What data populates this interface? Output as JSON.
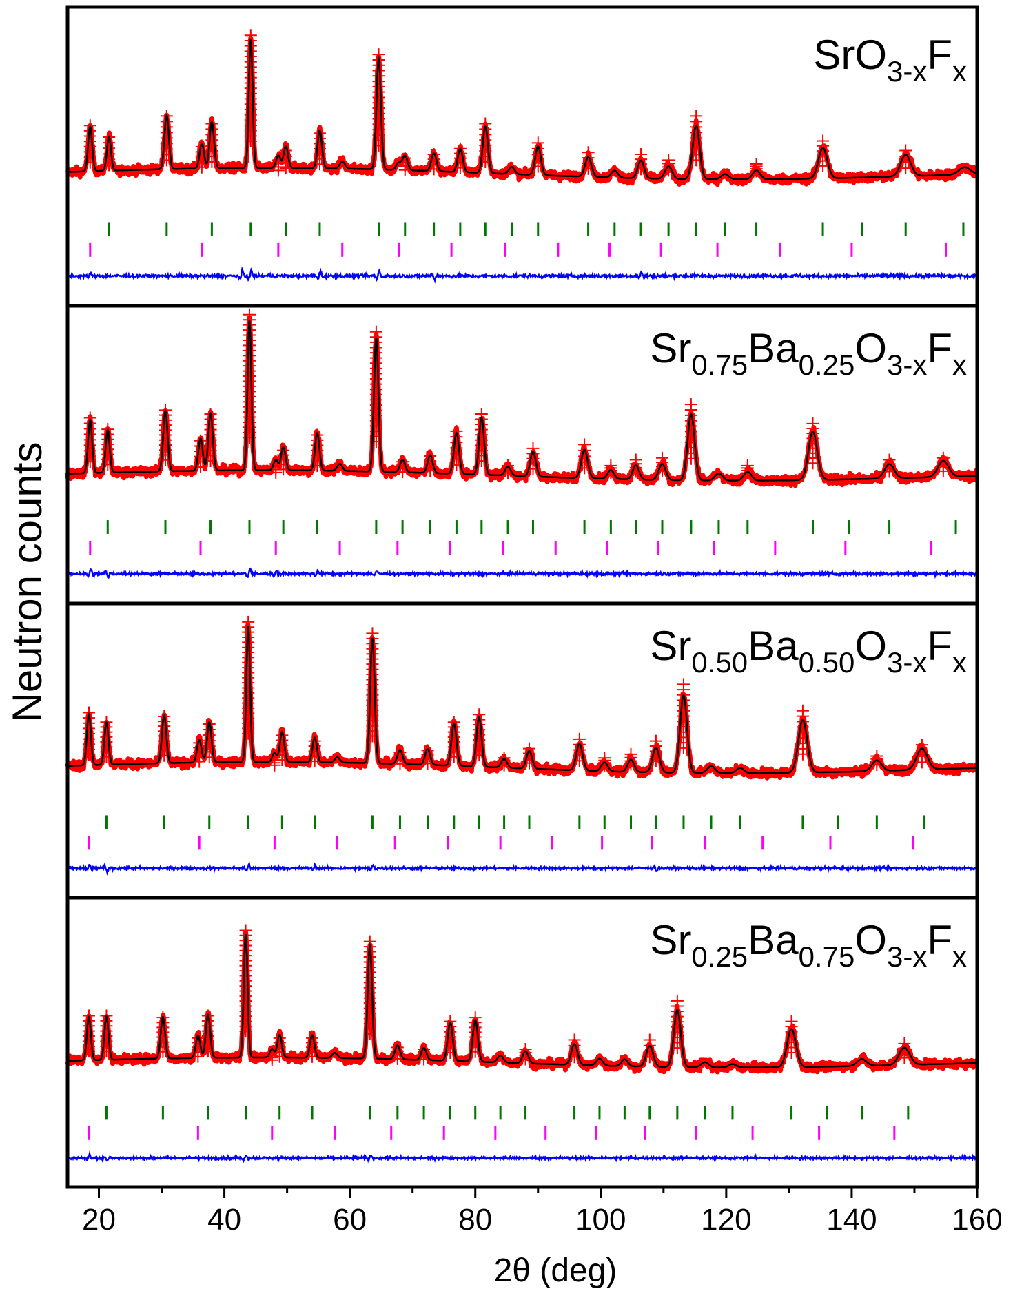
{
  "chart_data": {
    "type": "line",
    "title": "",
    "xlabel": "2θ (deg)",
    "ylabel": "Neutron counts",
    "xlim": [
      15,
      160
    ],
    "xticks": [
      20,
      40,
      60,
      80,
      100,
      120,
      140,
      160
    ],
    "ylim": [
      0,
      1
    ],
    "yticks_shown": false,
    "legend": "none",
    "series_styles": {
      "observed": {
        "color": "#ff0000",
        "marker": "cross"
      },
      "calculated": {
        "color": "#000000"
      },
      "difference": {
        "color": "#0000ff"
      },
      "reflections_phase_1": {
        "color": "#007700"
      },
      "reflections_phase_2": {
        "color": "#ff00ff"
      }
    },
    "panels": [
      {
        "label": {
          "prefix": "SrO",
          "parts": [
            {
              "text": "SrO",
              "sub": false
            },
            {
              "text": "3-x",
              "sub": true
            },
            {
              "text": "F",
              "sub": false
            },
            {
              "text": "x",
              "sub": true
            }
          ]
        },
        "background": 0.18,
        "peaks": [
          [
            18.6,
            0.25,
            0.32
          ],
          [
            21.6,
            0.19,
            0.32
          ],
          [
            30.8,
            0.3,
            0.35
          ],
          [
            36.4,
            0.14,
            0.35
          ],
          [
            38.0,
            0.26,
            0.35
          ],
          [
            44.2,
            0.72,
            0.3
          ],
          [
            48.6,
            0.07,
            0.35
          ],
          [
            49.8,
            0.12,
            0.35
          ],
          [
            55.2,
            0.21,
            0.35
          ],
          [
            58.8,
            0.04,
            0.4
          ],
          [
            64.6,
            0.62,
            0.35
          ],
          [
            67.8,
            0.04,
            0.4
          ],
          [
            68.8,
            0.08,
            0.4
          ],
          [
            73.4,
            0.1,
            0.4
          ],
          [
            77.6,
            0.13,
            0.4
          ],
          [
            81.6,
            0.26,
            0.4
          ],
          [
            85.8,
            0.04,
            0.45
          ],
          [
            90.0,
            0.16,
            0.45
          ],
          [
            98.0,
            0.11,
            0.5
          ],
          [
            102.2,
            0.04,
            0.5
          ],
          [
            106.4,
            0.1,
            0.5
          ],
          [
            110.8,
            0.07,
            0.55
          ],
          [
            115.2,
            0.3,
            0.55
          ],
          [
            119.8,
            0.03,
            0.6
          ],
          [
            124.8,
            0.05,
            0.6
          ],
          [
            135.4,
            0.17,
            0.7
          ],
          [
            148.6,
            0.12,
            0.8
          ],
          [
            158.0,
            0.04,
            0.9
          ]
        ],
        "ticks_phase_1": [
          21.6,
          30.8,
          38.0,
          44.2,
          49.8,
          55.2,
          64.6,
          68.8,
          73.4,
          77.6,
          81.6,
          85.8,
          90.0,
          98.0,
          102.2,
          106.4,
          110.8,
          115.2,
          119.8,
          124.8,
          135.4,
          141.6,
          148.6,
          157.8
        ],
        "ticks_phase_2": [
          18.6,
          36.4,
          48.6,
          58.8,
          67.8,
          76.2,
          84.8,
          93.2,
          101.4,
          109.6,
          118.6,
          128.6,
          140.0,
          155.0
        ],
        "difference_spikes": [
          [
            18.6,
            0.02
          ],
          [
            42.8,
            0.03
          ],
          [
            44.2,
            0.03
          ],
          [
            55.2,
            0.025
          ],
          [
            64.6,
            0.03
          ],
          [
            73.4,
            -0.02
          ],
          [
            106.4,
            0.02
          ]
        ]
      },
      {
        "label": {
          "prefix": "Sr0.75",
          "parts": [
            {
              "text": "Sr",
              "sub": false
            },
            {
              "text": "0.75",
              "sub": true
            },
            {
              "text": "Ba",
              "sub": false
            },
            {
              "text": "0.25",
              "sub": true
            },
            {
              "text": "O",
              "sub": false
            },
            {
              "text": "3-x",
              "sub": true
            },
            {
              "text": "F",
              "sub": false
            },
            {
              "text": "x",
              "sub": true
            }
          ]
        },
        "background": 0.16,
        "peaks": [
          [
            18.6,
            0.3,
            0.32
          ],
          [
            21.4,
            0.24,
            0.32
          ],
          [
            30.6,
            0.34,
            0.35
          ],
          [
            36.2,
            0.18,
            0.35
          ],
          [
            37.8,
            0.32,
            0.35
          ],
          [
            44.0,
            0.84,
            0.3
          ],
          [
            48.2,
            0.06,
            0.35
          ],
          [
            49.4,
            0.13,
            0.35
          ],
          [
            54.8,
            0.21,
            0.35
          ],
          [
            58.4,
            0.04,
            0.4
          ],
          [
            64.2,
            0.75,
            0.35
          ],
          [
            68.4,
            0.07,
            0.4
          ],
          [
            72.8,
            0.1,
            0.4
          ],
          [
            77.0,
            0.23,
            0.4
          ],
          [
            81.0,
            0.32,
            0.4
          ],
          [
            85.2,
            0.05,
            0.45
          ],
          [
            89.2,
            0.14,
            0.45
          ],
          [
            97.4,
            0.16,
            0.5
          ],
          [
            101.6,
            0.05,
            0.5
          ],
          [
            105.6,
            0.08,
            0.5
          ],
          [
            109.8,
            0.09,
            0.55
          ],
          [
            114.4,
            0.37,
            0.55
          ],
          [
            118.8,
            0.04,
            0.6
          ],
          [
            123.4,
            0.05,
            0.6
          ],
          [
            133.8,
            0.27,
            0.7
          ],
          [
            146.0,
            0.08,
            0.75
          ],
          [
            154.6,
            0.09,
            0.85
          ]
        ],
        "ticks_phase_1": [
          21.4,
          30.6,
          37.8,
          44.0,
          49.4,
          54.8,
          64.2,
          68.4,
          72.8,
          77.0,
          81.0,
          85.2,
          89.2,
          97.4,
          101.6,
          105.6,
          109.8,
          114.4,
          118.8,
          123.4,
          133.8,
          139.6,
          146.0,
          156.6
        ],
        "ticks_phase_2": [
          18.6,
          36.2,
          48.2,
          58.4,
          67.6,
          76.0,
          84.4,
          92.8,
          101.0,
          109.2,
          118.0,
          127.8,
          139.0,
          152.6
        ],
        "difference_spikes": [
          [
            18.6,
            0.025
          ],
          [
            21.4,
            -0.02
          ],
          [
            44.0,
            0.03
          ],
          [
            48.2,
            0.02
          ],
          [
            54.8,
            0.02
          ],
          [
            64.2,
            0.015
          ]
        ]
      },
      {
        "label": {
          "prefix": "Sr0.50",
          "parts": [
            {
              "text": "Sr",
              "sub": false
            },
            {
              "text": "0.50",
              "sub": true
            },
            {
              "text": "Ba",
              "sub": false
            },
            {
              "text": "0.50",
              "sub": true
            },
            {
              "text": "O",
              "sub": false
            },
            {
              "text": "3-x",
              "sub": true
            },
            {
              "text": "F",
              "sub": false
            },
            {
              "text": "x",
              "sub": true
            }
          ]
        },
        "background": 0.18,
        "peaks": [
          [
            18.4,
            0.29,
            0.32
          ],
          [
            21.2,
            0.24,
            0.32
          ],
          [
            30.4,
            0.27,
            0.35
          ],
          [
            36.0,
            0.13,
            0.35
          ],
          [
            37.6,
            0.23,
            0.35
          ],
          [
            43.8,
            0.77,
            0.3
          ],
          [
            48.0,
            0.05,
            0.35
          ],
          [
            49.2,
            0.17,
            0.35
          ],
          [
            54.4,
            0.14,
            0.35
          ],
          [
            58.0,
            0.03,
            0.4
          ],
          [
            63.6,
            0.71,
            0.35
          ],
          [
            68.0,
            0.08,
            0.4
          ],
          [
            72.4,
            0.09,
            0.4
          ],
          [
            76.6,
            0.24,
            0.4
          ],
          [
            80.6,
            0.28,
            0.4
          ],
          [
            84.6,
            0.05,
            0.45
          ],
          [
            88.6,
            0.1,
            0.45
          ],
          [
            96.6,
            0.15,
            0.5
          ],
          [
            100.6,
            0.05,
            0.5
          ],
          [
            104.8,
            0.07,
            0.5
          ],
          [
            108.8,
            0.14,
            0.55
          ],
          [
            113.2,
            0.44,
            0.55
          ],
          [
            117.6,
            0.04,
            0.6
          ],
          [
            122.2,
            0.03,
            0.6
          ],
          [
            132.2,
            0.3,
            0.7
          ],
          [
            144.0,
            0.06,
            0.75
          ],
          [
            151.2,
            0.12,
            0.85
          ]
        ],
        "ticks_phase_1": [
          21.2,
          30.4,
          37.6,
          43.8,
          49.2,
          54.4,
          63.6,
          68.0,
          72.4,
          76.6,
          80.6,
          84.6,
          88.6,
          96.6,
          100.6,
          104.8,
          108.8,
          113.2,
          117.6,
          122.2,
          132.2,
          137.8,
          144.0,
          151.6
        ],
        "ticks_phase_2": [
          18.4,
          36.0,
          48.0,
          58.0,
          67.2,
          75.6,
          84.0,
          92.2,
          100.2,
          108.2,
          116.6,
          125.8,
          136.6,
          149.8
        ],
        "difference_spikes": [
          [
            18.4,
            0.02
          ],
          [
            21.2,
            -0.02
          ],
          [
            43.8,
            0.02
          ],
          [
            54.4,
            0.015
          ],
          [
            63.6,
            0.02
          ],
          [
            108.8,
            -0.015
          ]
        ]
      },
      {
        "label": {
          "prefix": "Sr0.25",
          "parts": [
            {
              "text": "Sr",
              "sub": false
            },
            {
              "text": "0.25",
              "sub": true
            },
            {
              "text": "Ba",
              "sub": false
            },
            {
              "text": "0.75",
              "sub": true
            },
            {
              "text": "O",
              "sub": false
            },
            {
              "text": "3-x",
              "sub": true
            },
            {
              "text": "F",
              "sub": false
            },
            {
              "text": "x",
              "sub": true
            }
          ]
        },
        "background": 0.16,
        "peaks": [
          [
            18.4,
            0.25,
            0.32
          ],
          [
            21.2,
            0.25,
            0.32
          ],
          [
            30.2,
            0.24,
            0.35
          ],
          [
            35.8,
            0.13,
            0.35
          ],
          [
            37.4,
            0.25,
            0.35
          ],
          [
            43.4,
            0.71,
            0.3
          ],
          [
            47.6,
            0.05,
            0.35
          ],
          [
            48.8,
            0.13,
            0.35
          ],
          [
            54.0,
            0.13,
            0.35
          ],
          [
            57.6,
            0.03,
            0.4
          ],
          [
            63.2,
            0.65,
            0.35
          ],
          [
            67.6,
            0.08,
            0.4
          ],
          [
            71.8,
            0.07,
            0.4
          ],
          [
            76.0,
            0.22,
            0.4
          ],
          [
            80.0,
            0.24,
            0.4
          ],
          [
            84.0,
            0.04,
            0.45
          ],
          [
            88.0,
            0.07,
            0.45
          ],
          [
            95.8,
            0.12,
            0.5
          ],
          [
            99.8,
            0.04,
            0.5
          ],
          [
            103.8,
            0.04,
            0.5
          ],
          [
            107.8,
            0.12,
            0.55
          ],
          [
            112.2,
            0.33,
            0.55
          ],
          [
            116.6,
            0.03,
            0.6
          ],
          [
            121.0,
            0.02,
            0.6
          ],
          [
            130.4,
            0.22,
            0.7
          ],
          [
            141.6,
            0.04,
            0.75
          ],
          [
            148.4,
            0.1,
            0.85
          ]
        ],
        "ticks_phase_1": [
          21.2,
          30.2,
          37.4,
          43.4,
          48.8,
          54.0,
          63.2,
          67.6,
          71.8,
          76.0,
          80.0,
          84.0,
          88.0,
          95.8,
          99.8,
          103.8,
          107.8,
          112.2,
          116.6,
          121.0,
          130.4,
          136.0,
          141.6,
          149.0
        ],
        "ticks_phase_2": [
          18.4,
          35.8,
          47.6,
          57.6,
          66.6,
          75.0,
          83.2,
          91.2,
          99.2,
          107.0,
          115.2,
          124.2,
          134.8,
          146.8
        ],
        "difference_spikes": [
          [
            18.4,
            0.02
          ],
          [
            21.2,
            -0.015
          ],
          [
            43.4,
            0.015
          ],
          [
            63.2,
            0.015
          ]
        ]
      }
    ]
  }
}
